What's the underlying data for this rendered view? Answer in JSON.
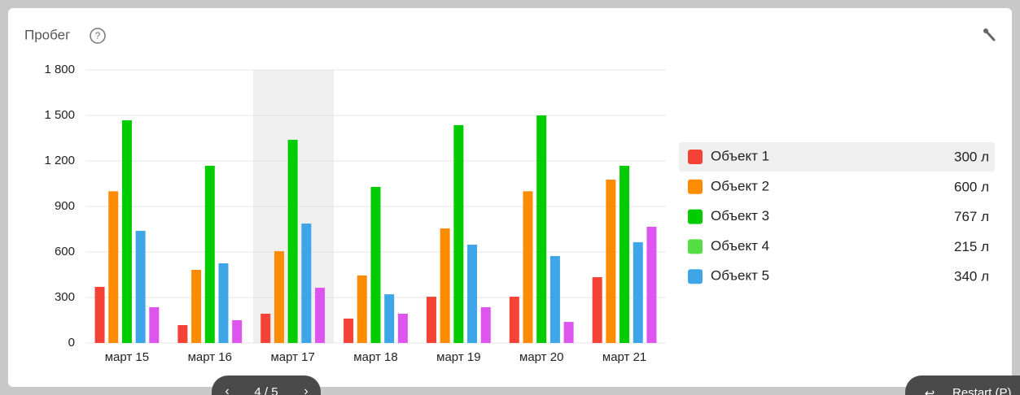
{
  "header": {
    "title": "Пробег"
  },
  "chart_data": {
    "type": "bar",
    "categories": [
      "март 15",
      "март 16",
      "март 17",
      "март 18",
      "март 19",
      "март 20",
      "март 21"
    ],
    "series": [
      {
        "name": "Объект 1",
        "color": "#f44336",
        "values": [
          370,
          118,
          193,
          161,
          305,
          305,
          434
        ]
      },
      {
        "name": "Объект 2",
        "color": "#ff8c00",
        "values": [
          1000,
          482,
          605,
          445,
          755,
          1000,
          1077
        ]
      },
      {
        "name": "Объект 3",
        "color": "#00cc00",
        "values": [
          1468,
          1168,
          1339,
          1029,
          1436,
          1500,
          1168
        ]
      },
      {
        "name": "Объект 4",
        "color": "#55dd44",
        "values": [
          null,
          null,
          null,
          null,
          null,
          null,
          null
        ]
      },
      {
        "name": "Объект 5",
        "color": "#3ea6e8",
        "values": [
          739,
          525,
          787,
          321,
          648,
          573,
          664
        ]
      },
      {
        "color": "#dd55ee",
        "values": [
          236,
          150,
          364,
          193,
          236,
          139,
          766
        ]
      }
    ],
    "ylim": [
      0,
      1800
    ],
    "yticks": [
      0,
      300,
      600,
      900,
      {
        "value": 1200,
        "label": "1 200"
      },
      {
        "value": 1500,
        "label": "1 500"
      },
      {
        "value": 1800,
        "label": "1 800"
      }
    ],
    "grid": true
  },
  "legend_totals": [
    "300 л",
    "600 л",
    "767 л",
    "215 л",
    "340 л"
  ],
  "pager": {
    "label": "4 / 5",
    "restart": "Restart (P)"
  }
}
